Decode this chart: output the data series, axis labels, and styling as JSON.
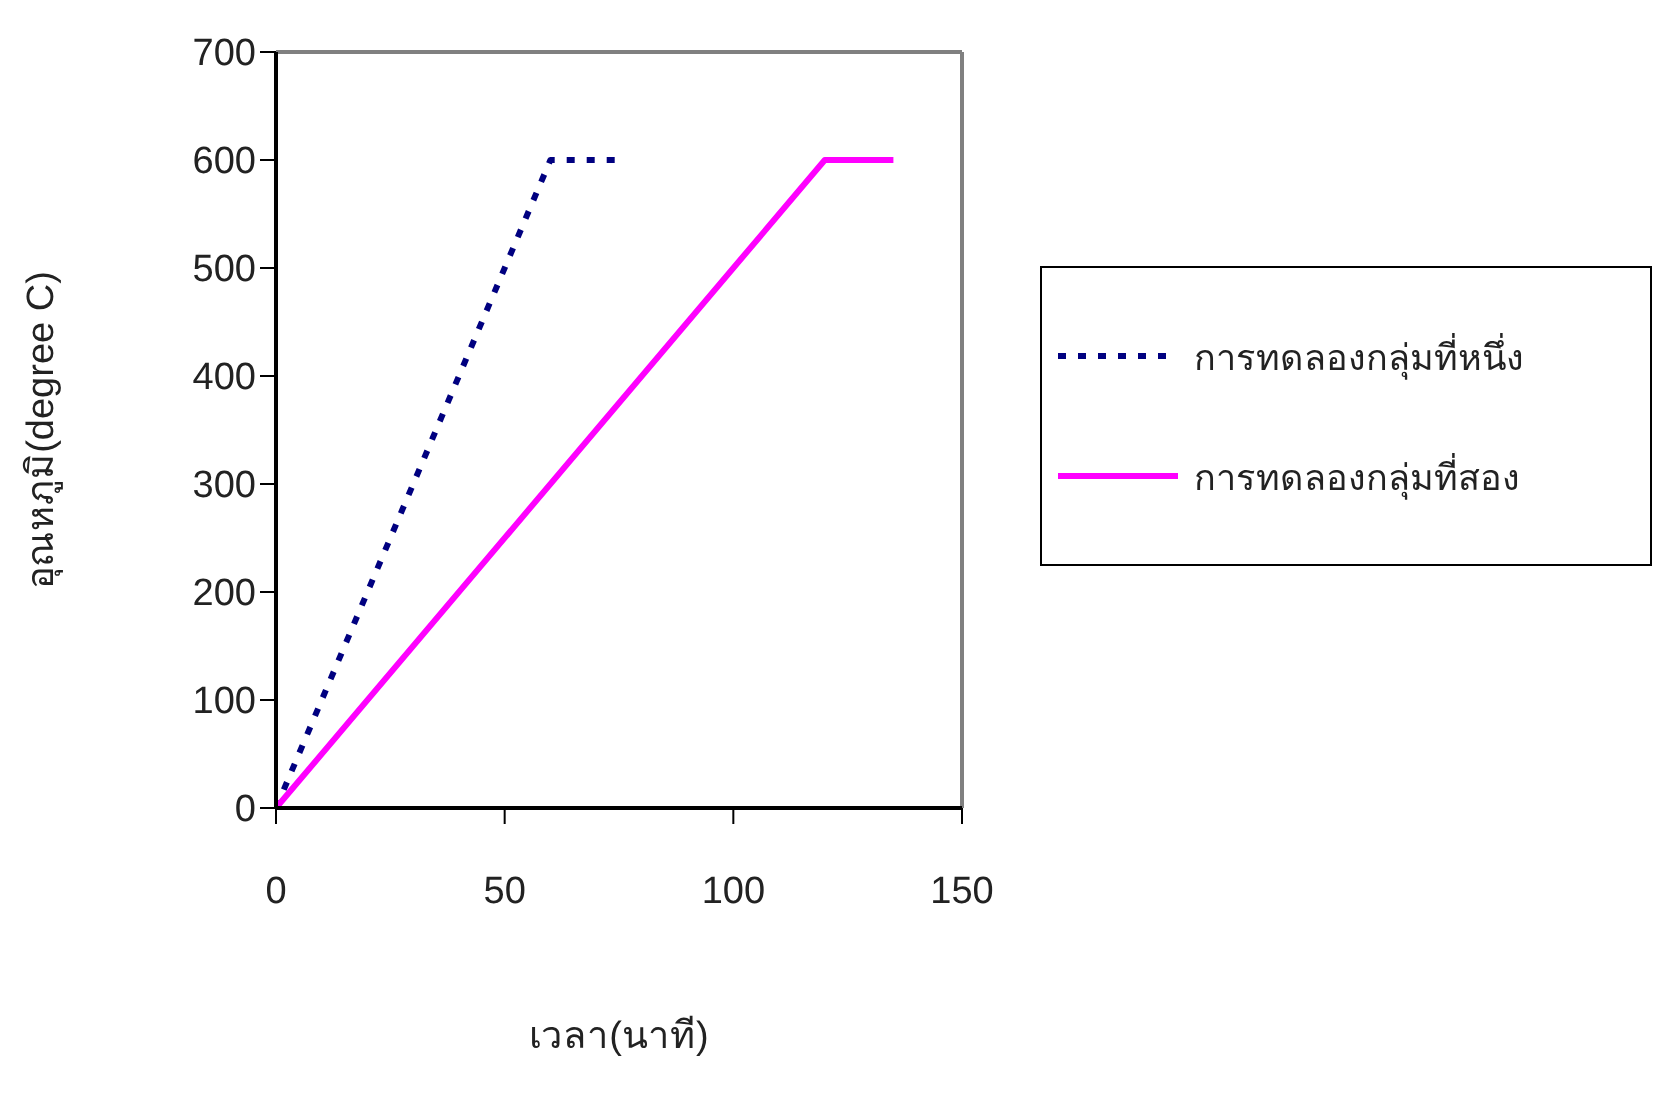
{
  "chart_data": {
    "type": "line",
    "xlabel": "เวลา(นาที)",
    "ylabel": "อุณหภูมิ(degree C)",
    "xlim": [
      0,
      150
    ],
    "xticks": [
      0,
      50,
      100,
      150
    ],
    "ylim": [
      0,
      700
    ],
    "yticks": [
      0,
      100,
      200,
      300,
      400,
      500,
      600,
      700
    ],
    "grid": false,
    "legend": "right",
    "marker": "none",
    "series": [
      {
        "name": "การทดลองกลุ่มที่หนึ่ง",
        "color": "#000080",
        "line_style": "dotted",
        "x": [
          0,
          60,
          75
        ],
        "values": [
          0,
          600,
          600
        ]
      },
      {
        "name": "การทดลองกลุ่มที่สอง",
        "color": "#ff00ff",
        "line_style": "solid",
        "x": [
          0,
          120,
          135
        ],
        "values": [
          0,
          600,
          600
        ]
      }
    ]
  }
}
